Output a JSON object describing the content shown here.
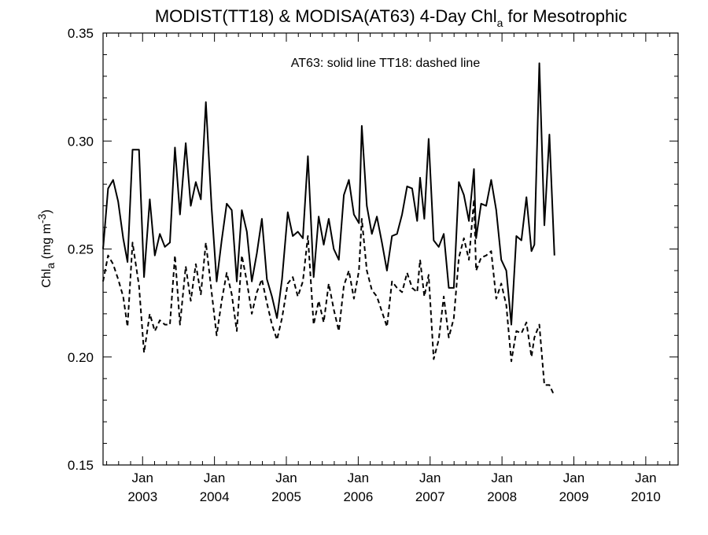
{
  "chart_data": {
    "type": "line",
    "title": {
      "main": "MODIST(TT18) & MODISA(AT63) 4-Day Chl",
      "subscript": "a",
      "suffix": " for Mesotrophic"
    },
    "ylabel": {
      "main": "Chl",
      "subscript": "a",
      "units_prefix": " (mg m",
      "units_superscript": "-3",
      "units_suffix": ")"
    },
    "annotation": "AT63: solid line   TT18: dashed line",
    "xlim": [
      2002.45,
      2010.45
    ],
    "ylim": [
      0.15,
      0.35
    ],
    "grid": false,
    "y_ticks": [
      {
        "value": 0.15,
        "label": "0.15"
      },
      {
        "value": 0.2,
        "label": "0.20"
      },
      {
        "value": 0.25,
        "label": "0.25"
      },
      {
        "value": 0.3,
        "label": "0.30"
      },
      {
        "value": 0.35,
        "label": "0.35"
      }
    ],
    "x_ticks": [
      {
        "value": 2003.0,
        "month": "Jan",
        "year": "2003"
      },
      {
        "value": 2004.0,
        "month": "Jan",
        "year": "2004"
      },
      {
        "value": 2005.0,
        "month": "Jan",
        "year": "2005"
      },
      {
        "value": 2006.0,
        "month": "Jan",
        "year": "2006"
      },
      {
        "value": 2007.0,
        "month": "Jan",
        "year": "2007"
      },
      {
        "value": 2008.0,
        "month": "Jan",
        "year": "2008"
      },
      {
        "value": 2009.0,
        "month": "Jan",
        "year": "2009"
      },
      {
        "value": 2010.0,
        "month": "Jan",
        "year": "2010"
      }
    ],
    "series": [
      {
        "key": "AT63",
        "style": "solid",
        "color": "#000000",
        "points": [
          [
            2002.45,
            0.25
          ],
          [
            2002.52,
            0.278
          ],
          [
            2002.59,
            0.282
          ],
          [
            2002.66,
            0.272
          ],
          [
            2002.73,
            0.255
          ],
          [
            2002.79,
            0.244
          ],
          [
            2002.86,
            0.296
          ],
          [
            2002.95,
            0.296
          ],
          [
            2003.02,
            0.237
          ],
          [
            2003.1,
            0.273
          ],
          [
            2003.17,
            0.247
          ],
          [
            2003.24,
            0.257
          ],
          [
            2003.31,
            0.251
          ],
          [
            2003.38,
            0.253
          ],
          [
            2003.45,
            0.297
          ],
          [
            2003.52,
            0.266
          ],
          [
            2003.6,
            0.299
          ],
          [
            2003.67,
            0.27
          ],
          [
            2003.74,
            0.281
          ],
          [
            2003.81,
            0.273
          ],
          [
            2003.88,
            0.318
          ],
          [
            2003.96,
            0.269
          ],
          [
            2004.03,
            0.235
          ],
          [
            2004.1,
            0.254
          ],
          [
            2004.17,
            0.271
          ],
          [
            2004.24,
            0.268
          ],
          [
            2004.31,
            0.235
          ],
          [
            2004.38,
            0.268
          ],
          [
            2004.45,
            0.258
          ],
          [
            2004.52,
            0.235
          ],
          [
            2004.59,
            0.248
          ],
          [
            2004.66,
            0.264
          ],
          [
            2004.73,
            0.236
          ],
          [
            2004.8,
            0.228
          ],
          [
            2004.87,
            0.218
          ],
          [
            2004.94,
            0.236
          ],
          [
            2005.02,
            0.267
          ],
          [
            2005.09,
            0.256
          ],
          [
            2005.16,
            0.258
          ],
          [
            2005.23,
            0.255
          ],
          [
            2005.3,
            0.293
          ],
          [
            2005.38,
            0.237
          ],
          [
            2005.45,
            0.265
          ],
          [
            2005.52,
            0.252
          ],
          [
            2005.59,
            0.264
          ],
          [
            2005.66,
            0.25
          ],
          [
            2005.73,
            0.245
          ],
          [
            2005.8,
            0.275
          ],
          [
            2005.87,
            0.282
          ],
          [
            2005.94,
            0.266
          ],
          [
            2006.01,
            0.262
          ],
          [
            2006.05,
            0.307
          ],
          [
            2006.12,
            0.27
          ],
          [
            2006.19,
            0.257
          ],
          [
            2006.26,
            0.265
          ],
          [
            2006.33,
            0.253
          ],
          [
            2006.4,
            0.24
          ],
          [
            2006.47,
            0.256
          ],
          [
            2006.54,
            0.257
          ],
          [
            2006.61,
            0.266
          ],
          [
            2006.68,
            0.279
          ],
          [
            2006.75,
            0.278
          ],
          [
            2006.82,
            0.263
          ],
          [
            2006.86,
            0.283
          ],
          [
            2006.92,
            0.264
          ],
          [
            2006.98,
            0.301
          ],
          [
            2007.05,
            0.254
          ],
          [
            2007.12,
            0.251
          ],
          [
            2007.19,
            0.257
          ],
          [
            2007.26,
            0.232
          ],
          [
            2007.33,
            0.232
          ],
          [
            2007.4,
            0.281
          ],
          [
            2007.47,
            0.275
          ],
          [
            2007.54,
            0.263
          ],
          [
            2007.61,
            0.287
          ],
          [
            2007.64,
            0.255
          ],
          [
            2007.71,
            0.271
          ],
          [
            2007.78,
            0.27
          ],
          [
            2007.85,
            0.282
          ],
          [
            2007.92,
            0.268
          ],
          [
            2007.99,
            0.245
          ],
          [
            2008.06,
            0.24
          ],
          [
            2008.13,
            0.215
          ],
          [
            2008.2,
            0.256
          ],
          [
            2008.27,
            0.254
          ],
          [
            2008.34,
            0.274
          ],
          [
            2008.41,
            0.249
          ],
          [
            2008.45,
            0.252
          ],
          [
            2008.52,
            0.336
          ],
          [
            2008.59,
            0.261
          ],
          [
            2008.66,
            0.303
          ],
          [
            2008.73,
            0.247
          ]
        ]
      },
      {
        "key": "TT18",
        "style": "dashed",
        "color": "#000000",
        "points": [
          [
            2002.45,
            0.235
          ],
          [
            2002.52,
            0.247
          ],
          [
            2002.59,
            0.243
          ],
          [
            2002.66,
            0.236
          ],
          [
            2002.73,
            0.228
          ],
          [
            2002.79,
            0.214
          ],
          [
            2002.86,
            0.253
          ],
          [
            2002.95,
            0.233
          ],
          [
            2003.02,
            0.202
          ],
          [
            2003.1,
            0.22
          ],
          [
            2003.17,
            0.212
          ],
          [
            2003.24,
            0.217
          ],
          [
            2003.31,
            0.215
          ],
          [
            2003.38,
            0.215
          ],
          [
            2003.45,
            0.247
          ],
          [
            2003.52,
            0.215
          ],
          [
            2003.6,
            0.242
          ],
          [
            2003.67,
            0.226
          ],
          [
            2003.74,
            0.243
          ],
          [
            2003.81,
            0.229
          ],
          [
            2003.88,
            0.253
          ],
          [
            2003.96,
            0.23
          ],
          [
            2004.03,
            0.21
          ],
          [
            2004.1,
            0.226
          ],
          [
            2004.17,
            0.239
          ],
          [
            2004.24,
            0.229
          ],
          [
            2004.31,
            0.212
          ],
          [
            2004.38,
            0.247
          ],
          [
            2004.45,
            0.235
          ],
          [
            2004.52,
            0.22
          ],
          [
            2004.59,
            0.23
          ],
          [
            2004.66,
            0.236
          ],
          [
            2004.73,
            0.225
          ],
          [
            2004.8,
            0.215
          ],
          [
            2004.87,
            0.208
          ],
          [
            2004.94,
            0.218
          ],
          [
            2005.02,
            0.234
          ],
          [
            2005.09,
            0.237
          ],
          [
            2005.16,
            0.228
          ],
          [
            2005.23,
            0.235
          ],
          [
            2005.3,
            0.256
          ],
          [
            2005.38,
            0.215
          ],
          [
            2005.45,
            0.226
          ],
          [
            2005.52,
            0.216
          ],
          [
            2005.59,
            0.234
          ],
          [
            2005.66,
            0.222
          ],
          [
            2005.73,
            0.212
          ],
          [
            2005.8,
            0.233
          ],
          [
            2005.87,
            0.24
          ],
          [
            2005.94,
            0.227
          ],
          [
            2006.01,
            0.24
          ],
          [
            2006.05,
            0.264
          ],
          [
            2006.12,
            0.24
          ],
          [
            2006.19,
            0.231
          ],
          [
            2006.26,
            0.228
          ],
          [
            2006.33,
            0.221
          ],
          [
            2006.4,
            0.214
          ],
          [
            2006.47,
            0.235
          ],
          [
            2006.54,
            0.232
          ],
          [
            2006.61,
            0.23
          ],
          [
            2006.68,
            0.239
          ],
          [
            2006.75,
            0.232
          ],
          [
            2006.82,
            0.23
          ],
          [
            2006.86,
            0.245
          ],
          [
            2006.92,
            0.228
          ],
          [
            2006.98,
            0.238
          ],
          [
            2007.05,
            0.199
          ],
          [
            2007.12,
            0.208
          ],
          [
            2007.19,
            0.228
          ],
          [
            2007.26,
            0.209
          ],
          [
            2007.33,
            0.218
          ],
          [
            2007.4,
            0.246
          ],
          [
            2007.47,
            0.255
          ],
          [
            2007.54,
            0.245
          ],
          [
            2007.61,
            0.273
          ],
          [
            2007.64,
            0.24
          ],
          [
            2007.71,
            0.246
          ],
          [
            2007.78,
            0.247
          ],
          [
            2007.85,
            0.249
          ],
          [
            2007.92,
            0.227
          ],
          [
            2007.99,
            0.234
          ],
          [
            2008.06,
            0.224
          ],
          [
            2008.13,
            0.198
          ],
          [
            2008.2,
            0.212
          ],
          [
            2008.27,
            0.211
          ],
          [
            2008.34,
            0.216
          ],
          [
            2008.41,
            0.2
          ],
          [
            2008.45,
            0.209
          ],
          [
            2008.52,
            0.215
          ],
          [
            2008.59,
            0.187
          ],
          [
            2008.66,
            0.187
          ],
          [
            2008.73,
            0.182
          ]
        ]
      }
    ]
  }
}
